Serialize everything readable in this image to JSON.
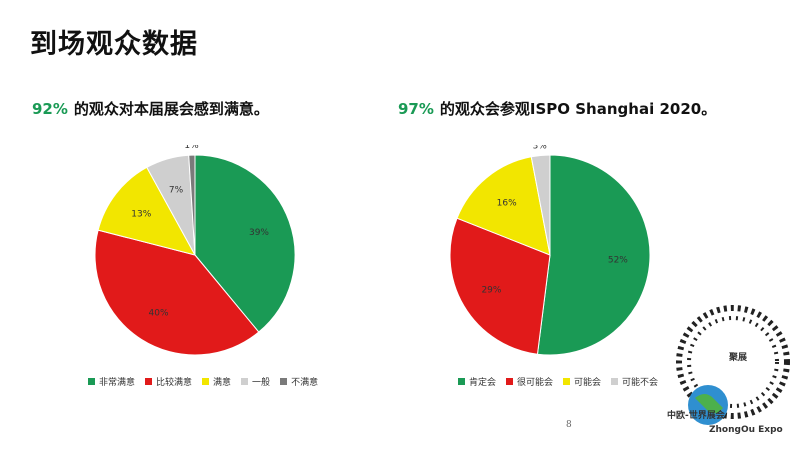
{
  "title": "到场观众数据",
  "colors": {
    "green": "#1a9a55",
    "red": "#e11a1a",
    "yellow": "#f2e600",
    "light_gray": "#cfcfcf",
    "dark_gray": "#7a7a7a"
  },
  "charts": {
    "left": {
      "heading_pct": "92%",
      "heading_text": "的观众对本届展会感到满意。"
    },
    "right": {
      "heading_pct": "97%",
      "heading_text": "的观众会参观ISPO Shanghai 2020。"
    }
  },
  "chart_data": [
    {
      "type": "pie",
      "title": "92% 的观众对本届展会感到满意。",
      "categories": [
        "非常满意",
        "比较满意",
        "满意",
        "一般",
        "不满意"
      ],
      "values": [
        39,
        40,
        13,
        7,
        1
      ],
      "labels": [
        "39%",
        "40%",
        "13%",
        "7%",
        "1%"
      ],
      "colors": [
        "#1a9a55",
        "#e11a1a",
        "#f2e600",
        "#cfcfcf",
        "#7a7a7a"
      ],
      "legend": "bottom"
    },
    {
      "type": "pie",
      "title": "97% 的观众会参观ISPO Shanghai 2020。",
      "categories": [
        "肯定会",
        "很可能会",
        "可能会",
        "可能不会"
      ],
      "values": [
        52,
        29,
        16,
        3
      ],
      "labels": [
        "52%",
        "29%",
        "16%",
        "3%"
      ],
      "colors": [
        "#1a9a55",
        "#e11a1a",
        "#f2e600",
        "#cfcfcf"
      ],
      "legend": "bottom"
    }
  ],
  "page_number": "8",
  "watermark": {
    "line1": "聚展",
    "line2": "中欧-世界展会",
    "line3": "ZhongOu Expo"
  }
}
